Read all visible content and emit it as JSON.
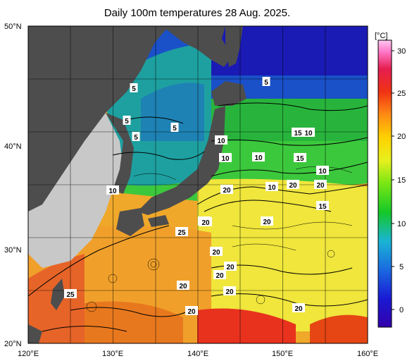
{
  "title": "Daily 100m temperatures 28 Aug. 2025.",
  "map": {
    "lon_range": [
      120,
      160
    ],
    "lat_range": [
      20,
      50
    ],
    "x_ticks": [
      "120°E",
      "130°E",
      "140°E",
      "150°E",
      "160°E"
    ],
    "y_ticks": [
      "50°N",
      "40°N",
      "30°N",
      "20°N"
    ],
    "contour_labels": [
      "5",
      "5",
      "5",
      "5",
      "5",
      "10",
      "10",
      "10",
      "10",
      "10",
      "15",
      "10",
      "10",
      "15",
      "20",
      "20",
      "15",
      "20",
      "20",
      "25",
      "20",
      "20",
      "20",
      "20",
      "20",
      "20",
      "25",
      "20",
      "20",
      "20"
    ],
    "colors": {
      "land": "#4d4d4d",
      "foreign_land": "#c8c8c8",
      "warm": "#e8321e",
      "cold": "#1a1ab4"
    }
  },
  "colorbar": {
    "unit": "[°C]",
    "ticks": [
      "30",
      "25",
      "20",
      "15",
      "10",
      "5",
      "0"
    ],
    "range": [
      -2,
      32
    ]
  }
}
